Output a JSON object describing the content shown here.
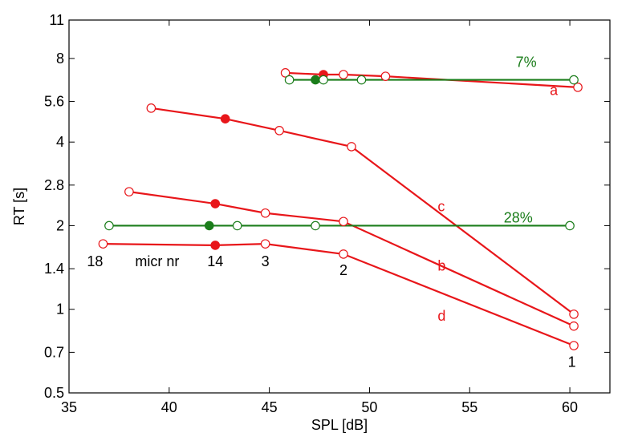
{
  "chart_data": {
    "type": "line",
    "xlabel": "SPL  [dB]",
    "ylabel": "RT  [s]",
    "xlim": [
      35,
      62
    ],
    "ylim": [
      0.5,
      11
    ],
    "yscale": "log",
    "xticks": [
      35,
      40,
      45,
      50,
      55,
      60
    ],
    "xtick_labels": [
      "35",
      "40",
      "45",
      "50",
      "55",
      "60"
    ],
    "yticks": [
      0.5,
      0.7,
      1,
      1.4,
      2,
      2.8,
      4,
      5.6,
      8,
      11
    ],
    "ytick_labels": [
      "0.5",
      "0.7",
      "1",
      "1.4",
      "2",
      "2.8",
      "4",
      "5.6",
      "8",
      "11"
    ],
    "grid": false,
    "colors": {
      "red": "#e8161a",
      "green": "#1b7d1b"
    },
    "series": [
      {
        "label": "a",
        "color": "red",
        "points": [
          {
            "x": 45.8,
            "y": 7.1,
            "filled": false
          },
          {
            "x": 47.7,
            "y": 7.0,
            "filled": true
          },
          {
            "x": 48.7,
            "y": 7.0,
            "filled": false
          },
          {
            "x": 50.8,
            "y": 6.9,
            "filled": false
          },
          {
            "x": 60.4,
            "y": 6.3,
            "filled": false
          }
        ]
      },
      {
        "label": "7%",
        "color": "green",
        "points": [
          {
            "x": 46.0,
            "y": 6.7,
            "filled": false
          },
          {
            "x": 47.3,
            "y": 6.7,
            "filled": true
          },
          {
            "x": 47.7,
            "y": 6.7,
            "filled": false
          },
          {
            "x": 49.6,
            "y": 6.7,
            "filled": false
          },
          {
            "x": 60.2,
            "y": 6.7,
            "filled": false
          }
        ]
      },
      {
        "label": "c",
        "color": "red",
        "points": [
          {
            "x": 39.1,
            "y": 5.3,
            "filled": false
          },
          {
            "x": 42.8,
            "y": 4.85,
            "filled": true
          },
          {
            "x": 45.5,
            "y": 4.4,
            "filled": false
          },
          {
            "x": 49.1,
            "y": 3.85,
            "filled": false
          },
          {
            "x": 60.2,
            "y": 0.96,
            "filled": false
          }
        ]
      },
      {
        "label": "b",
        "color": "red",
        "points": [
          {
            "x": 38.0,
            "y": 2.65,
            "filled": false
          },
          {
            "x": 42.3,
            "y": 2.4,
            "filled": true
          },
          {
            "x": 44.8,
            "y": 2.22,
            "filled": false
          },
          {
            "x": 48.7,
            "y": 2.07,
            "filled": false
          },
          {
            "x": 60.2,
            "y": 0.87,
            "filled": false
          }
        ]
      },
      {
        "label": "28%",
        "color": "green",
        "points": [
          {
            "x": 37.0,
            "y": 2.0,
            "filled": false
          },
          {
            "x": 42.0,
            "y": 2.0,
            "filled": true
          },
          {
            "x": 43.4,
            "y": 2.0,
            "filled": false
          },
          {
            "x": 47.3,
            "y": 2.0,
            "filled": false
          },
          {
            "x": 60.0,
            "y": 2.0,
            "filled": false
          }
        ]
      },
      {
        "label": "d",
        "color": "red",
        "points": [
          {
            "x": 36.7,
            "y": 1.72,
            "filled": false
          },
          {
            "x": 42.3,
            "y": 1.7,
            "filled": true
          },
          {
            "x": 44.8,
            "y": 1.72,
            "filled": false
          },
          {
            "x": 48.7,
            "y": 1.58,
            "filled": false
          },
          {
            "x": 60.2,
            "y": 0.74,
            "filled": false
          }
        ]
      }
    ],
    "annotations": [
      {
        "text": "7%",
        "x": 57.3,
        "y": 7.45,
        "color": "green",
        "anchor": "start"
      },
      {
        "text": "a",
        "x": 59.0,
        "y": 5.9,
        "color": "red",
        "anchor": "start"
      },
      {
        "text": "c",
        "x": 53.4,
        "y": 2.25,
        "color": "red",
        "anchor": "start"
      },
      {
        "text": "28%",
        "x": 56.7,
        "y": 2.05,
        "color": "green",
        "anchor": "start"
      },
      {
        "text": "b",
        "x": 53.4,
        "y": 1.38,
        "color": "red",
        "anchor": "start"
      },
      {
        "text": "d",
        "x": 53.4,
        "y": 0.91,
        "color": "red",
        "anchor": "start"
      },
      {
        "text": "18",
        "x": 36.3,
        "y": 1.43,
        "color": "black",
        "anchor": "middle"
      },
      {
        "text": "micr nr",
        "x": 39.4,
        "y": 1.43,
        "color": "black",
        "anchor": "middle"
      },
      {
        "text": "14",
        "x": 42.3,
        "y": 1.43,
        "color": "black",
        "anchor": "middle"
      },
      {
        "text": "3",
        "x": 44.8,
        "y": 1.43,
        "color": "black",
        "anchor": "middle"
      },
      {
        "text": "2",
        "x": 48.7,
        "y": 1.33,
        "color": "black",
        "anchor": "middle"
      },
      {
        "text": "1",
        "x": 60.1,
        "y": 0.62,
        "color": "black",
        "anchor": "middle"
      }
    ]
  }
}
